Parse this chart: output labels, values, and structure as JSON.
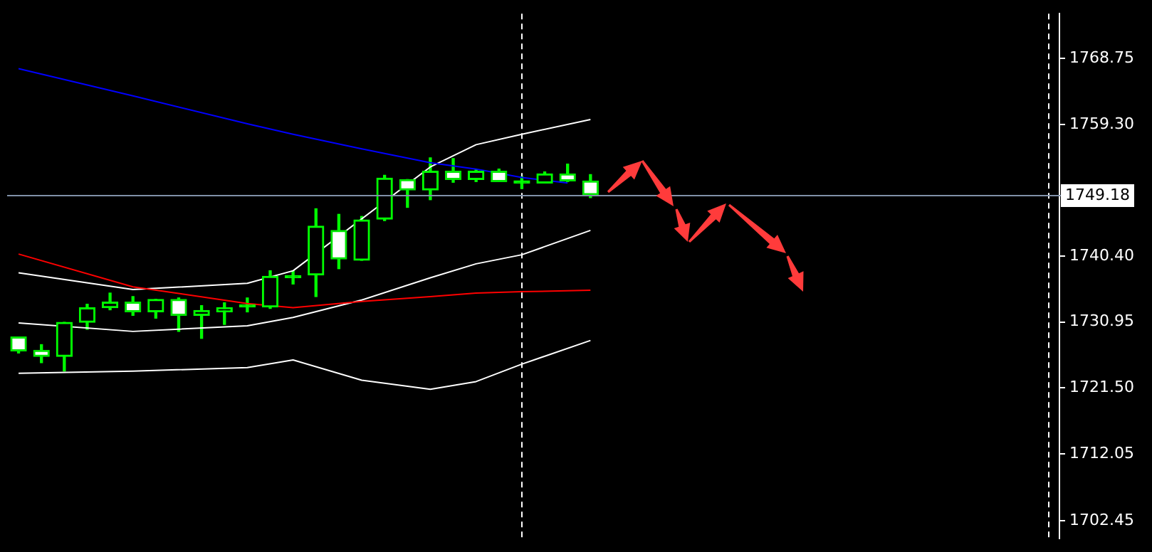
{
  "chart_data": {
    "type": "candlestick",
    "categories": [
      null,
      null,
      null,
      null,
      null,
      null,
      null,
      null,
      null,
      null,
      null,
      null,
      null,
      null,
      null,
      null,
      null,
      null,
      null,
      null,
      null,
      null,
      null,
      null,
      null,
      null,
      null,
      null,
      null,
      null,
      null,
      null,
      null,
      null,
      null,
      null,
      null,
      null,
      null,
      null,
      null,
      null,
      null,
      null,
      null,
      null
    ],
    "ohlc": [
      [
        1728.8,
        1728.8,
        1726.5,
        1726.8
      ],
      [
        1726.9,
        1727.7,
        1725.1,
        1726.0
      ],
      [
        1726.0,
        1730.9,
        1723.9,
        1730.9
      ],
      [
        1730.9,
        1733.5,
        1729.9,
        1733.0
      ],
      [
        1733.0,
        1735.1,
        1732.7,
        1733.8
      ],
      [
        1733.8,
        1734.6,
        1731.9,
        1732.4
      ],
      [
        1732.4,
        1734.2,
        1731.5,
        1734.2
      ],
      [
        1734.2,
        1734.4,
        1729.6,
        1731.9
      ],
      [
        1731.9,
        1733.3,
        1728.6,
        1732.6
      ],
      [
        1732.4,
        1733.7,
        1730.6,
        1733.0
      ],
      [
        1733.1,
        1734.4,
        1732.4,
        1733.1
      ],
      [
        1733.1,
        1738.3,
        1732.9,
        1737.5
      ],
      [
        1737.3,
        1738.3,
        1736.4,
        1737.3
      ],
      [
        1737.7,
        1747.2,
        1734.6,
        1744.7
      ],
      [
        1744.1,
        1746.4,
        1738.6,
        1740.0
      ],
      [
        1739.8,
        1746.1,
        1739.8,
        1745.6
      ],
      [
        1745.7,
        1752.0,
        1745.5,
        1751.6
      ],
      [
        1751.4,
        1751.4,
        1747.4,
        1749.9
      ],
      [
        1749.9,
        1754.5,
        1748.5,
        1752.6
      ],
      [
        1752.6,
        1754.4,
        1751.0,
        1751.4
      ],
      [
        1751.4,
        1752.8,
        1751.1,
        1752.6
      ],
      [
        1752.6,
        1752.9,
        1751.1,
        1751.1
      ],
      [
        1750.9,
        1751.8,
        1750.1,
        1750.9
      ],
      [
        1750.9,
        1752.5,
        1750.9,
        1752.2
      ],
      [
        1752.2,
        1753.6,
        1751.1,
        1751.2
      ],
      [
        1751.2,
        1752.1,
        1748.8,
        1749.2
      ],
      null,
      null,
      null,
      null,
      null,
      null,
      null,
      null,
      null,
      null,
      null,
      null,
      null,
      null,
      null,
      null,
      null,
      null,
      null,
      null
    ],
    "series": [
      {
        "type": "line",
        "color": "#0000ff",
        "values": [
          1767.3,
          null,
          null,
          null,
          null,
          1763.4,
          null,
          null,
          null,
          null,
          1759.4,
          null,
          1757.9,
          null,
          null,
          1755.8,
          null,
          null,
          1753.8,
          null,
          1752.9,
          null,
          1751.7,
          null,
          1750.9,
          null,
          null,
          null,
          null,
          null,
          null,
          null,
          null,
          null,
          null,
          null,
          null,
          null,
          null,
          null,
          null,
          null,
          null,
          null,
          null,
          null
        ]
      },
      {
        "type": "line",
        "color": "#ff0000",
        "values": [
          1740.7,
          null,
          null,
          null,
          null,
          1736.0,
          null,
          null,
          null,
          null,
          1733.6,
          null,
          1733.0,
          null,
          null,
          1733.9,
          null,
          null,
          1734.6,
          null,
          1735.1,
          null,
          1735.3,
          null,
          null,
          1735.5,
          null,
          null,
          null,
          null,
          null,
          null,
          null,
          null,
          null,
          null,
          null,
          null,
          null,
          null,
          null,
          null,
          null,
          null,
          null,
          null
        ]
      },
      {
        "type": "line",
        "color": "#ffffff",
        "values": [
          1738.0,
          null,
          null,
          null,
          null,
          1735.6,
          null,
          null,
          null,
          null,
          1736.5,
          null,
          1738.3,
          null,
          null,
          null,
          null,
          null,
          1753.2,
          null,
          1756.4,
          null,
          1757.9,
          null,
          null,
          1760.0,
          null,
          null,
          null,
          null,
          null,
          null,
          null,
          null,
          null,
          null,
          null,
          null,
          null,
          null,
          null,
          null,
          null,
          null,
          null,
          null
        ]
      },
      {
        "type": "line",
        "color": "#ffffff",
        "values": [
          1730.8,
          null,
          null,
          null,
          null,
          1729.6,
          null,
          null,
          null,
          null,
          1730.4,
          null,
          1731.6,
          null,
          null,
          1734.1,
          null,
          null,
          1737.3,
          null,
          1739.3,
          null,
          1740.6,
          null,
          null,
          1744.1,
          null,
          null,
          null,
          null,
          null,
          null,
          null,
          null,
          null,
          null,
          null,
          null,
          null,
          null,
          null,
          null,
          null,
          null,
          null,
          null
        ]
      },
      {
        "type": "line",
        "color": "#ffffff",
        "values": [
          1723.6,
          null,
          null,
          null,
          null,
          1723.9,
          null,
          null,
          null,
          null,
          1724.4,
          null,
          1725.5,
          null,
          null,
          1722.6,
          null,
          null,
          1721.3,
          null,
          1722.4,
          null,
          1724.9,
          null,
          null,
          1728.3,
          null,
          null,
          null,
          null,
          null,
          null,
          null,
          null,
          null,
          null,
          null,
          null,
          null,
          null,
          null,
          null,
          null,
          null,
          null,
          null
        ]
      }
    ],
    "ylim": [
      1699.9,
      1775.2
    ],
    "yticks": [
      1702.45,
      1712.05,
      {
        "value": 1721.5,
        "label": "1721.50"
      },
      1730.95,
      {
        "value": 1740.4,
        "label": "1740.40"
      },
      {
        "value": 1759.3,
        "label": "1759.30"
      },
      1768.75
    ],
    "ref_lines": [
      {
        "axis": "y",
        "value": 1749.18,
        "label": "1749.18",
        "color": "#8090a8"
      }
    ],
    "grid": false,
    "legend": false,
    "tick_labels": "y"
  }
}
